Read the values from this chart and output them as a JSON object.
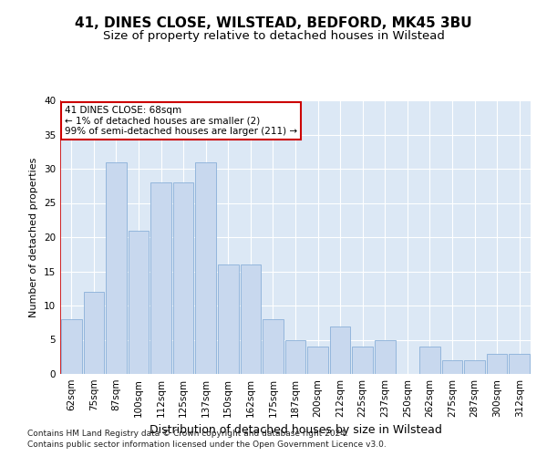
{
  "title1": "41, DINES CLOSE, WILSTEAD, BEDFORD, MK45 3BU",
  "title2": "Size of property relative to detached houses in Wilstead",
  "xlabel": "Distribution of detached houses by size in Wilstead",
  "ylabel": "Number of detached properties",
  "categories": [
    "62sqm",
    "75sqm",
    "87sqm",
    "100sqm",
    "112sqm",
    "125sqm",
    "137sqm",
    "150sqm",
    "162sqm",
    "175sqm",
    "187sqm",
    "200sqm",
    "212sqm",
    "225sqm",
    "237sqm",
    "250sqm",
    "262sqm",
    "275sqm",
    "287sqm",
    "300sqm",
    "312sqm"
  ],
  "values": [
    8,
    12,
    31,
    21,
    28,
    28,
    31,
    16,
    16,
    8,
    5,
    4,
    7,
    4,
    5,
    0,
    4,
    2,
    2,
    3,
    3
  ],
  "bar_color": "#c8d8ee",
  "bar_edge_color": "#8ab0d8",
  "annotation_box_text": "41 DINES CLOSE: 68sqm\n← 1% of detached houses are smaller (2)\n99% of semi-detached houses are larger (211) →",
  "annotation_box_color": "#ffffff",
  "annotation_box_edge_color": "#cc0000",
  "ylim": [
    0,
    40
  ],
  "yticks": [
    0,
    5,
    10,
    15,
    20,
    25,
    30,
    35,
    40
  ],
  "footer_line1": "Contains HM Land Registry data © Crown copyright and database right 2024.",
  "footer_line2": "Contains public sector information licensed under the Open Government Licence v3.0.",
  "plot_bg_color": "#dce8f5",
  "title1_fontsize": 11,
  "title2_fontsize": 9.5,
  "xlabel_fontsize": 9,
  "ylabel_fontsize": 8,
  "tick_fontsize": 7.5,
  "annotation_fontsize": 7.5,
  "footer_fontsize": 6.5
}
